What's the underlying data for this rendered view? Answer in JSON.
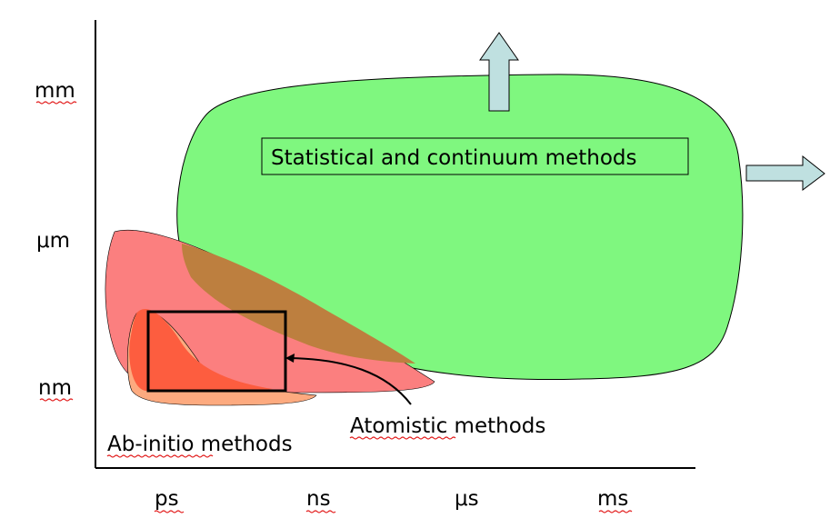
{
  "axes": {
    "y_ticks": [
      "mm",
      "μm",
      "nm"
    ],
    "x_ticks": [
      "ps",
      "ns",
      "μs",
      "ms"
    ]
  },
  "regions": {
    "statistical": "Statistical and continuum methods",
    "atomistic": "Atomistic methods",
    "abinitio": "Ab-initio methods"
  },
  "colors": {
    "statistical_fill": "#7ff77f",
    "atomistic_fill": "#fb7f7f",
    "overlap_fill": "#bd7f3f",
    "abinitio_fill": "#fdaa7f",
    "abinitio_core_fill": "#fd5d3f",
    "arrow_fill": "#bfe0e0",
    "spellcheck_underline": "#e21a1a"
  }
}
